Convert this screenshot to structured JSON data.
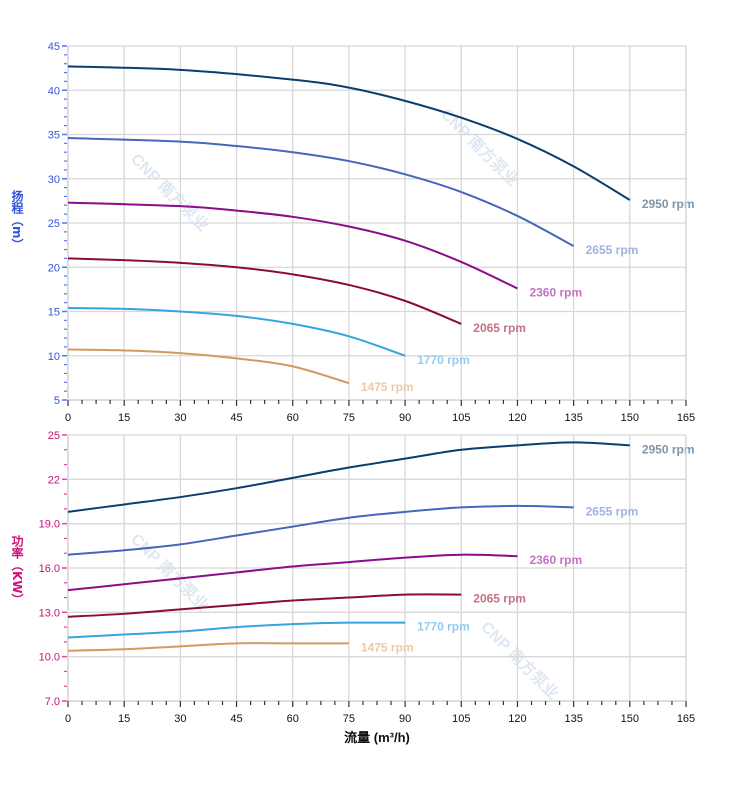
{
  "watermark": "CNP 南方泵业",
  "chart_data": [
    {
      "type": "line",
      "ylabel": "扬程（m）",
      "ylabel_color": "#3355dd",
      "xlim": [
        0,
        165
      ],
      "ylim": [
        5,
        45
      ],
      "x_ticks": [
        0,
        15,
        30,
        45,
        60,
        75,
        90,
        105,
        120,
        135,
        150,
        165
      ],
      "y_ticks": [
        "5",
        "10",
        "15",
        "20",
        "25",
        "30",
        "35",
        "40",
        "45"
      ],
      "grid": true,
      "series": [
        {
          "name": "2950 rpm",
          "color": "#0b3d6e",
          "label_color": "#7d95ab",
          "x": [
            0,
            30,
            60,
            75,
            90,
            105,
            120,
            135,
            150
          ],
          "y": [
            42.7,
            42.3,
            41.2,
            40.3,
            38.8,
            36.9,
            34.5,
            31.4,
            27.6
          ]
        },
        {
          "name": "2655 rpm",
          "color": "#4466bb",
          "label_color": "#a2b2de",
          "x": [
            0,
            30,
            45,
            60,
            75,
            90,
            105,
            120,
            135
          ],
          "y": [
            34.6,
            34.2,
            33.7,
            33.0,
            32.0,
            30.5,
            28.5,
            25.8,
            22.4
          ]
        },
        {
          "name": "2360 rpm",
          "color": "#8b0d8b",
          "label_color": "#c274c2",
          "x": [
            0,
            30,
            45,
            60,
            75,
            90,
            105,
            120
          ],
          "y": [
            27.3,
            26.9,
            26.4,
            25.7,
            24.6,
            23.0,
            20.6,
            17.6
          ]
        },
        {
          "name": "2065 rpm",
          "color": "#8b0c3a",
          "label_color": "#c27484",
          "x": [
            0,
            15,
            30,
            45,
            60,
            75,
            90,
            105
          ],
          "y": [
            21.0,
            20.8,
            20.5,
            20.0,
            19.2,
            18.0,
            16.2,
            13.6
          ]
        },
        {
          "name": "1770 rpm",
          "color": "#33a5e0",
          "label_color": "#92cdf0",
          "x": [
            0,
            15,
            30,
            45,
            60,
            75,
            90
          ],
          "y": [
            15.4,
            15.3,
            15.0,
            14.5,
            13.6,
            12.2,
            10.0
          ]
        },
        {
          "name": "1475 rpm",
          "color": "#d49a5c",
          "label_color": "#ebcaa4",
          "x": [
            0,
            15,
            30,
            45,
            60,
            75
          ],
          "y": [
            10.7,
            10.6,
            10.3,
            9.7,
            8.8,
            6.9
          ]
        }
      ]
    },
    {
      "type": "line",
      "xlabel": "流量 (m³/h)",
      "ylabel": "功率（KW）",
      "ylabel_color": "#cc1177",
      "xlim": [
        0,
        165
      ],
      "ylim": [
        7,
        25
      ],
      "x_ticks": [
        0,
        15,
        30,
        45,
        60,
        75,
        90,
        105,
        120,
        135,
        150,
        165
      ],
      "y_ticks": [
        "7.0",
        "10.0",
        "13.0",
        "16.0",
        "19.0",
        "22",
        "25"
      ],
      "grid": true,
      "series": [
        {
          "name": "2950 rpm",
          "color": "#0b3d6e",
          "label_color": "#7d95ab",
          "x": [
            0,
            15,
            30,
            45,
            60,
            75,
            90,
            105,
            120,
            135,
            150
          ],
          "y": [
            19.8,
            20.3,
            20.8,
            21.4,
            22.1,
            22.8,
            23.4,
            24.0,
            24.3,
            24.5,
            24.3
          ]
        },
        {
          "name": "2655 rpm",
          "color": "#4466bb",
          "label_color": "#a2b2de",
          "x": [
            0,
            15,
            30,
            45,
            60,
            75,
            90,
            105,
            120,
            135
          ],
          "y": [
            16.9,
            17.2,
            17.6,
            18.2,
            18.8,
            19.4,
            19.8,
            20.1,
            20.2,
            20.1
          ]
        },
        {
          "name": "2360 rpm",
          "color": "#8b0d8b",
          "label_color": "#c274c2",
          "x": [
            0,
            15,
            30,
            45,
            60,
            75,
            90,
            105,
            120
          ],
          "y": [
            14.5,
            14.9,
            15.3,
            15.7,
            16.1,
            16.4,
            16.7,
            16.9,
            16.8
          ]
        },
        {
          "name": "2065 rpm",
          "color": "#8b0c3a",
          "label_color": "#c27484",
          "x": [
            0,
            15,
            30,
            45,
            60,
            75,
            90,
            105
          ],
          "y": [
            12.7,
            12.9,
            13.2,
            13.5,
            13.8,
            14.0,
            14.2,
            14.2
          ]
        },
        {
          "name": "1770 rpm",
          "color": "#33a5e0",
          "label_color": "#92cdf0",
          "x": [
            0,
            15,
            30,
            45,
            60,
            75,
            90
          ],
          "y": [
            11.3,
            11.5,
            11.7,
            12.0,
            12.2,
            12.3,
            12.3
          ]
        },
        {
          "name": "1475 rpm",
          "color": "#d49a5c",
          "label_color": "#ebcaa4",
          "x": [
            0,
            15,
            30,
            45,
            60,
            75
          ],
          "y": [
            10.4,
            10.5,
            10.7,
            10.9,
            10.9,
            10.9
          ]
        }
      ]
    }
  ]
}
